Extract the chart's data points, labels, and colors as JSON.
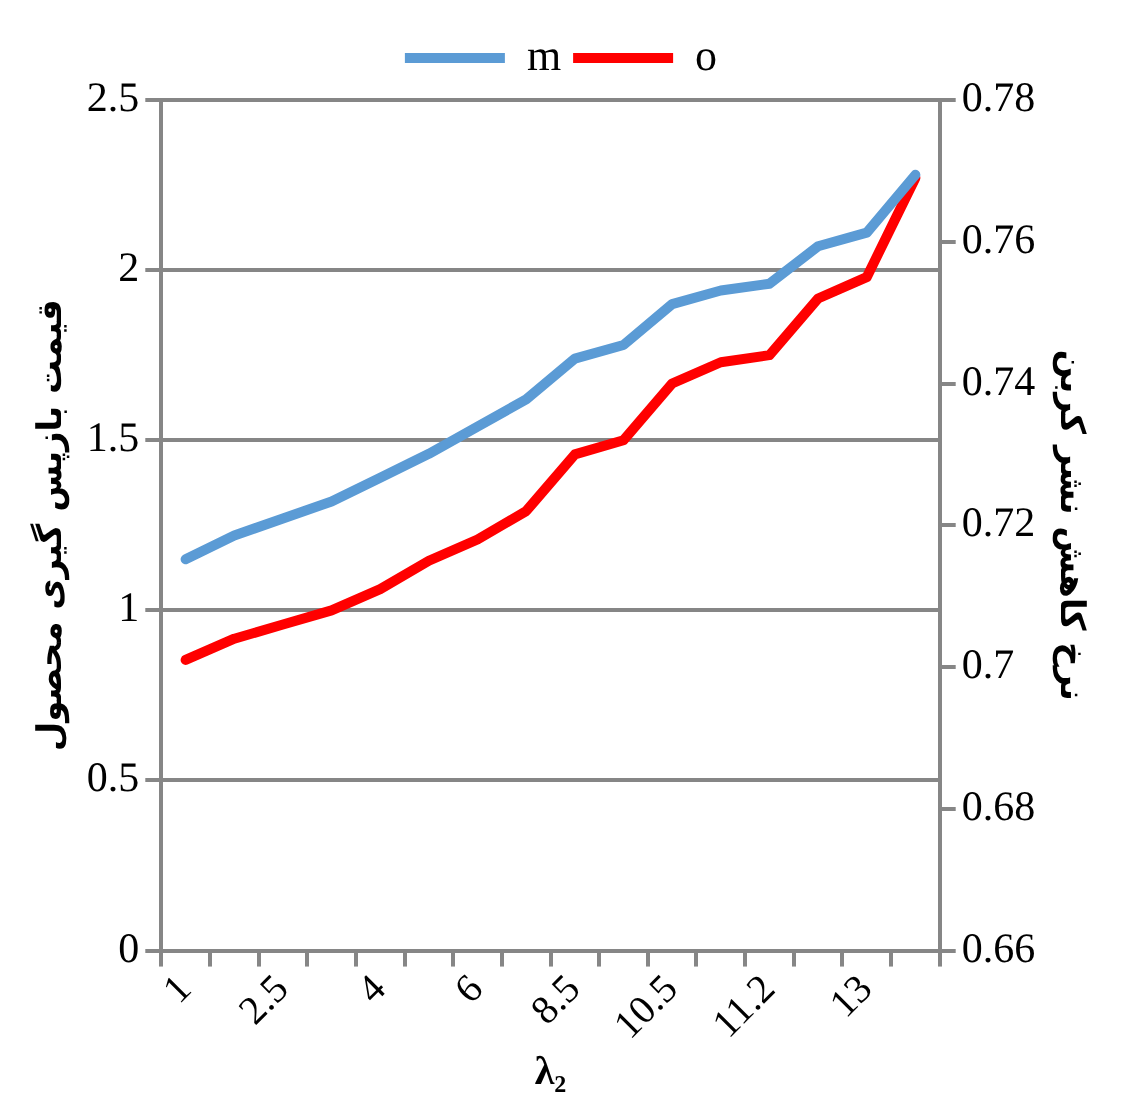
{
  "chart_data": {
    "type": "line",
    "xlabel": "λ₂",
    "ylabel": "قیمت بازپس گیری محصول",
    "y2label": "نرخ کاهش نشر کربن",
    "categories": [
      "1",
      null,
      "2.5",
      null,
      "4",
      null,
      "6",
      null,
      "8.5",
      null,
      "10.5",
      null,
      "11.2",
      null,
      "13",
      null
    ],
    "series": [
      {
        "name": "m",
        "color": "#5b9bd5",
        "values": [
          1.15,
          1.22,
          1.27,
          1.32,
          1.39,
          1.46,
          1.54,
          1.62,
          1.74,
          1.78,
          1.9,
          1.94,
          1.96,
          2.07,
          2.11,
          2.28
        ]
      },
      {
        "name": "o",
        "color": "#ff0000",
        "axis": "y2",
        "values": [
          0.701,
          0.704,
          0.706,
          0.708,
          0.711,
          0.715,
          0.718,
          0.722,
          0.73,
          0.732,
          0.74,
          0.743,
          0.744,
          0.752,
          0.755,
          0.769
        ]
      }
    ],
    "ylim": [
      0,
      2.5
    ],
    "yticks": [
      0,
      0.5,
      1,
      1.5,
      2,
      2.5
    ],
    "y2lim": [
      0.66,
      0.78
    ],
    "y2ticks": [
      0.66,
      0.68,
      0.7,
      0.72,
      0.74,
      0.76,
      0.78
    ],
    "grid": "y",
    "legend": "top",
    "marker": "none",
    "line_style": "solid"
  }
}
